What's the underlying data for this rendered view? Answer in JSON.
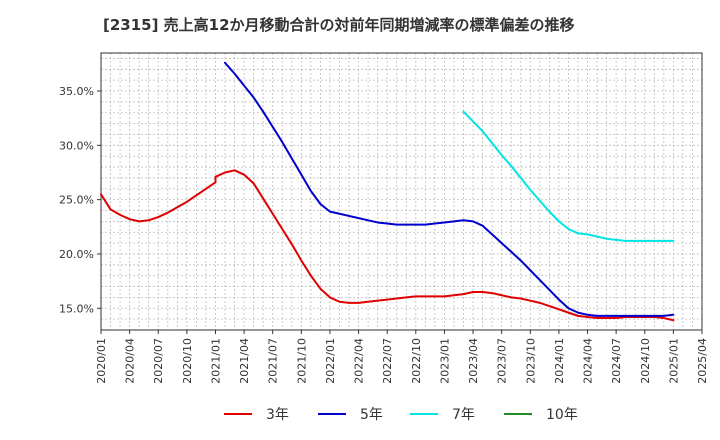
{
  "chart_data": {
    "type": "line",
    "title": "[2315]  売上高12か月移動合計の対前年同期増減率の標準偏差の推移",
    "xlabel": "",
    "ylabel": "",
    "ylim": [
      13.0,
      38.5
    ],
    "y_ticks": [
      15.0,
      20.0,
      25.0,
      30.0,
      35.0
    ],
    "y_tick_labels": [
      "15.0%",
      "20.0%",
      "25.0%",
      "30.0%",
      "35.0%"
    ],
    "x_range": [
      "2020-01",
      "2025-04"
    ],
    "x_ticks": [
      "2020/01",
      "2020/04",
      "2020/07",
      "2020/10",
      "2021/01",
      "2021/04",
      "2021/07",
      "2021/10",
      "2022/01",
      "2022/04",
      "2022/07",
      "2022/10",
      "2023/01",
      "2023/04",
      "2023/07",
      "2023/10",
      "2024/01",
      "2024/04",
      "2024/07",
      "2024/10",
      "2025/01",
      "2025/04"
    ],
    "grid": true,
    "legend_position": "bottom",
    "series": [
      {
        "name": "3年",
        "color": "#e00000",
        "points": [
          [
            "2020-01",
            25.5
          ],
          [
            "2020-02",
            24.1
          ],
          [
            "2020-03",
            23.6
          ],
          [
            "2020-04",
            23.2
          ],
          [
            "2020-05",
            23.0
          ],
          [
            "2020-06",
            23.1
          ],
          [
            "2020-07",
            23.4
          ],
          [
            "2020-08",
            23.8
          ],
          [
            "2020-09",
            24.3
          ],
          [
            "2020-10",
            24.8
          ],
          [
            "2020-11",
            25.4
          ],
          [
            "2020-12",
            26.0
          ],
          [
            "2020-13",
            26.6
          ],
          [
            "2021-01",
            27.1
          ],
          [
            "2021-02",
            27.5
          ],
          [
            "2021-03",
            27.7
          ],
          [
            "2021-04",
            27.3
          ],
          [
            "2021-05",
            26.5
          ],
          [
            "2021-06",
            25.1
          ],
          [
            "2021-07",
            23.7
          ],
          [
            "2021-08",
            22.3
          ],
          [
            "2021-09",
            20.9
          ],
          [
            "2021-10",
            19.4
          ],
          [
            "2021-11",
            18.0
          ],
          [
            "2021-12",
            16.8
          ],
          [
            "2022-01",
            16.0
          ],
          [
            "2022-02",
            15.6
          ],
          [
            "2022-03",
            15.5
          ],
          [
            "2022-04",
            15.5
          ],
          [
            "2022-05",
            15.6
          ],
          [
            "2022-06",
            15.7
          ],
          [
            "2022-07",
            15.8
          ],
          [
            "2022-08",
            15.9
          ],
          [
            "2022-09",
            16.0
          ],
          [
            "2022-10",
            16.1
          ],
          [
            "2022-11",
            16.1
          ],
          [
            "2022-12",
            16.1
          ],
          [
            "2023-01",
            16.1
          ],
          [
            "2023-02",
            16.2
          ],
          [
            "2023-03",
            16.3
          ],
          [
            "2023-04",
            16.5
          ],
          [
            "2023-05",
            16.5
          ],
          [
            "2023-06",
            16.4
          ],
          [
            "2023-07",
            16.2
          ],
          [
            "2023-08",
            16.0
          ],
          [
            "2023-09",
            15.9
          ],
          [
            "2023-10",
            15.7
          ],
          [
            "2023-11",
            15.5
          ],
          [
            "2023-12",
            15.2
          ],
          [
            "2024-01",
            14.9
          ],
          [
            "2024-02",
            14.6
          ],
          [
            "2024-03",
            14.3
          ],
          [
            "2024-04",
            14.2
          ],
          [
            "2024-05",
            14.1
          ],
          [
            "2024-06",
            14.1
          ],
          [
            "2024-07",
            14.1
          ],
          [
            "2024-08",
            14.2
          ],
          [
            "2024-09",
            14.2
          ],
          [
            "2024-10",
            14.2
          ],
          [
            "2024-11",
            14.2
          ],
          [
            "2024-12",
            14.1
          ],
          [
            "2025-01",
            13.9
          ]
        ]
      },
      {
        "name": "5年",
        "color": "#0000cc",
        "points": [
          [
            "2021-02",
            37.6
          ],
          [
            "2021-03",
            36.6
          ],
          [
            "2021-04",
            35.5
          ],
          [
            "2021-05",
            34.4
          ],
          [
            "2021-06",
            33.1
          ],
          [
            "2021-07",
            31.7
          ],
          [
            "2021-08",
            30.3
          ],
          [
            "2021-09",
            28.8
          ],
          [
            "2021-10",
            27.3
          ],
          [
            "2021-11",
            25.8
          ],
          [
            "2021-12",
            24.6
          ],
          [
            "2022-01",
            23.9
          ],
          [
            "2022-02",
            23.7
          ],
          [
            "2022-03",
            23.5
          ],
          [
            "2022-04",
            23.3
          ],
          [
            "2022-05",
            23.1
          ],
          [
            "2022-06",
            22.9
          ],
          [
            "2022-07",
            22.8
          ],
          [
            "2022-08",
            22.7
          ],
          [
            "2022-09",
            22.7
          ],
          [
            "2022-10",
            22.7
          ],
          [
            "2022-11",
            22.7
          ],
          [
            "2022-12",
            22.8
          ],
          [
            "2023-01",
            22.9
          ],
          [
            "2023-02",
            23.0
          ],
          [
            "2023-03",
            23.1
          ],
          [
            "2023-04",
            23.0
          ],
          [
            "2023-05",
            22.6
          ],
          [
            "2023-06",
            21.8
          ],
          [
            "2023-07",
            21.0
          ],
          [
            "2023-08",
            20.2
          ],
          [
            "2023-09",
            19.4
          ],
          [
            "2023-10",
            18.5
          ],
          [
            "2023-11",
            17.6
          ],
          [
            "2023-12",
            16.7
          ],
          [
            "2024-01",
            15.8
          ],
          [
            "2024-02",
            15.0
          ],
          [
            "2024-03",
            14.6
          ],
          [
            "2024-04",
            14.4
          ],
          [
            "2024-05",
            14.3
          ],
          [
            "2024-06",
            14.3
          ],
          [
            "2024-07",
            14.3
          ],
          [
            "2024-08",
            14.3
          ],
          [
            "2024-09",
            14.3
          ],
          [
            "2024-10",
            14.3
          ],
          [
            "2024-11",
            14.3
          ],
          [
            "2024-12",
            14.3
          ],
          [
            "2025-01",
            14.4
          ]
        ]
      },
      {
        "name": "7年",
        "color": "#00e5e5",
        "points": [
          [
            "2023-03",
            33.1
          ],
          [
            "2023-04",
            32.2
          ],
          [
            "2023-05",
            31.3
          ],
          [
            "2023-06",
            30.2
          ],
          [
            "2023-07",
            29.1
          ],
          [
            "2023-08",
            28.1
          ],
          [
            "2023-09",
            27.0
          ],
          [
            "2023-10",
            25.9
          ],
          [
            "2023-11",
            24.9
          ],
          [
            "2023-12",
            23.9
          ],
          [
            "2024-01",
            23.0
          ],
          [
            "2024-02",
            22.3
          ],
          [
            "2024-03",
            21.9
          ],
          [
            "2024-04",
            21.8
          ],
          [
            "2024-05",
            21.6
          ],
          [
            "2024-06",
            21.4
          ],
          [
            "2024-07",
            21.3
          ],
          [
            "2024-08",
            21.2
          ],
          [
            "2024-09",
            21.2
          ],
          [
            "2024-10",
            21.2
          ],
          [
            "2024-11",
            21.2
          ],
          [
            "2024-12",
            21.2
          ],
          [
            "2025-01",
            21.2
          ]
        ]
      },
      {
        "name": "10年",
        "color": "#228b22",
        "points": []
      }
    ]
  }
}
